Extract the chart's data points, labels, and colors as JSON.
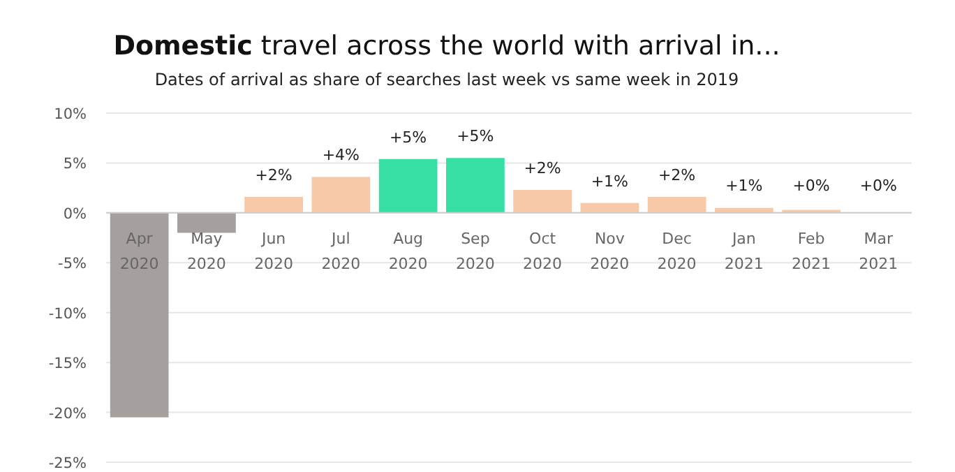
{
  "chart_data": {
    "type": "bar",
    "title": "Domestic travel across the world with arrival in...",
    "subtitle": "Dates of arrival as share of searches last week vs same week in 2019",
    "categories": [
      "Apr 2020",
      "May 2020",
      "Jun 2020",
      "Jul 2020",
      "Aug 2020",
      "Sep 2020",
      "Oct 2020",
      "Nov 2020",
      "Dec 2020",
      "Jan 2021",
      "Feb 2021",
      "Mar 2021"
    ],
    "values": [
      -20.5,
      -2.0,
      1.6,
      3.6,
      5.4,
      5.5,
      2.3,
      1.0,
      1.6,
      0.5,
      0.3,
      0
    ],
    "colors": [
      "#a5a09e",
      "#a5a09e",
      "#f7c9a8",
      "#f7c9a8",
      "#36e0a2",
      "#36e0a2",
      "#f7c9a8",
      "#f7c9a8",
      "#f7c9a8",
      "#f7c9a8",
      "#f7c9a8",
      "#f7c9a8"
    ],
    "value_labels": [
      null,
      null,
      "+2%",
      "+4%",
      "+5%",
      "+5%",
      "+2%",
      "+1%",
      "+2%",
      "+1%",
      "+0%",
      "+0%"
    ],
    "ylim": [
      -25,
      10
    ],
    "yticks": [
      {
        "value": -25,
        "label": "-25%"
      },
      {
        "value": -20,
        "label": "-20%"
      },
      {
        "value": -15,
        "label": "-15%"
      },
      {
        "value": -10,
        "label": "-10%"
      },
      {
        "value": -5,
        "label": "-5%"
      },
      {
        "value": 0,
        "label": "0%"
      },
      {
        "value": 5,
        "label": "5%"
      },
      {
        "value": 10,
        "label": "10%"
      }
    ],
    "grid": "y"
  }
}
